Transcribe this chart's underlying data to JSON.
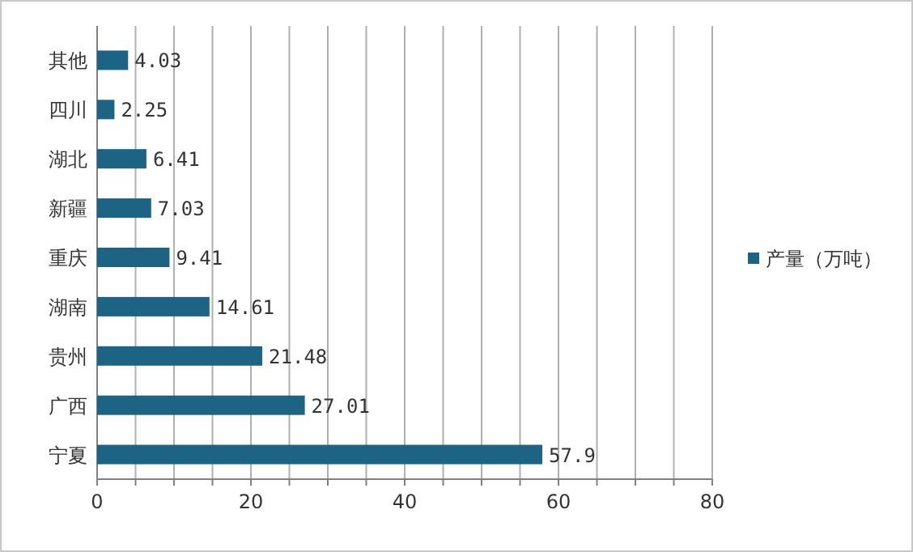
{
  "chart_data": {
    "type": "bar",
    "orientation": "horizontal",
    "categories": [
      "其他",
      "四川",
      "湖北",
      "新疆",
      "重庆",
      "湖南",
      "贵州",
      "广西",
      "宁夏"
    ],
    "series": [
      {
        "name": "产量（万吨）",
        "color": "#1d6383",
        "values": [
          4.03,
          2.25,
          6.41,
          7.03,
          9.41,
          14.61,
          21.48,
          27.01,
          57.9
        ]
      }
    ],
    "xlim": [
      0,
      80
    ],
    "xticks": [
      0,
      {
        "value": 5,
        "label": null
      },
      {
        "value": 10,
        "label": null
      },
      {
        "value": 15,
        "label": null
      },
      20,
      {
        "value": 25,
        "label": null
      },
      {
        "value": 30,
        "label": null
      },
      {
        "value": 35,
        "label": null
      },
      40,
      {
        "value": 45,
        "label": null
      },
      {
        "value": 50,
        "label": null
      },
      {
        "value": 55,
        "label": null
      },
      60,
      {
        "value": 65,
        "label": null
      },
      {
        "value": 70,
        "label": null
      },
      {
        "value": 75,
        "label": null
      },
      80
    ],
    "grid": "x",
    "legend": "right",
    "data_labels": true
  }
}
